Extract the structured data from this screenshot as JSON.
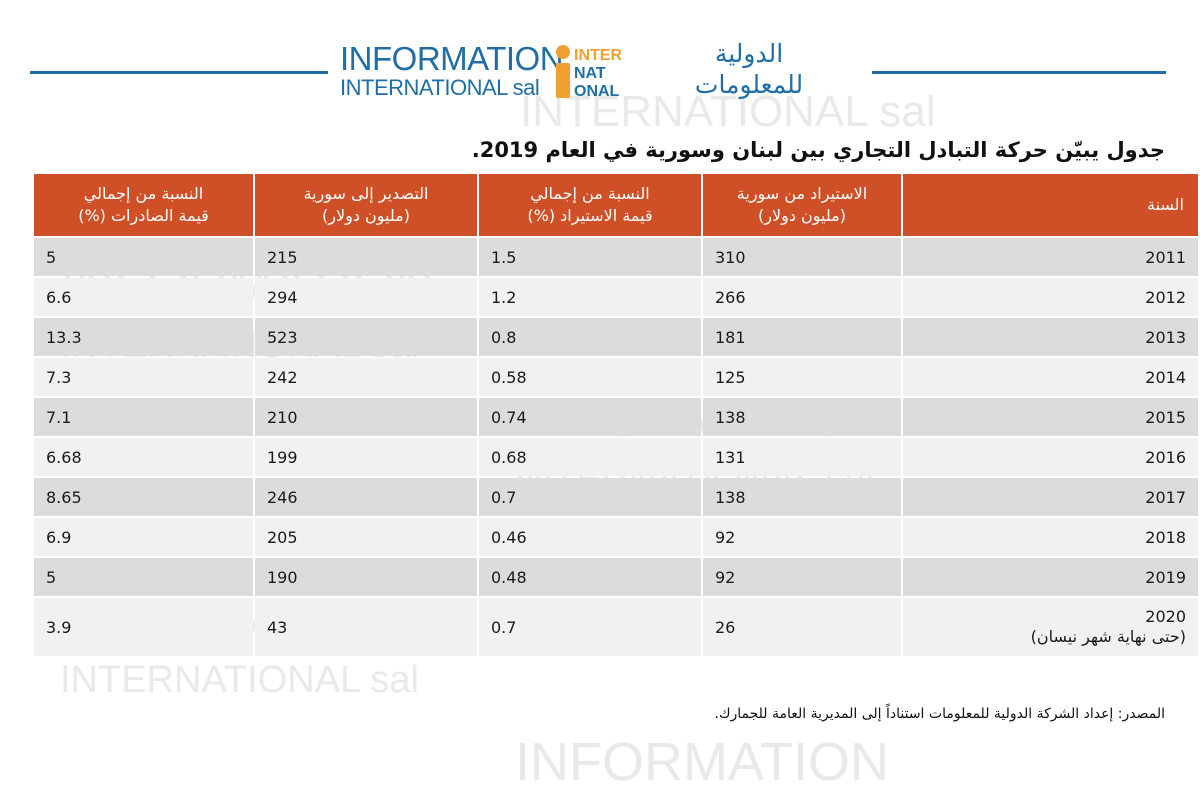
{
  "logo": {
    "en_line1": "INFORMATION",
    "en_line2": "INTERNATIONAL sal",
    "mark_letters": [
      "INTER",
      "NAT",
      "ONAL"
    ],
    "ar_line1": "الدولية",
    "ar_line2": "للمعلومات",
    "brand_color": "#1f6ea6",
    "mark_color": "#f0a030"
  },
  "title": "جدول يبيّن حركة التبادل التجاري بين لبنان وسورية في العام 2019.",
  "table": {
    "headers": {
      "year": "السنة",
      "imports": [
        "الاستيراد من سورية",
        "(مليون دولار)"
      ],
      "import_share": [
        "النسبة من إجمالي",
        "قيمة الاستيراد (%)"
      ],
      "exports": [
        "التصدير إلى سورية",
        "(مليون دولار)"
      ],
      "export_share": [
        "النسبة من إجمالي",
        "قيمة الصادرات (%)"
      ]
    },
    "header_color": "#cf4f26",
    "rows": [
      {
        "year": "2011",
        "imports": "310",
        "import_share": "1.5",
        "exports": "215",
        "export_share": "5"
      },
      {
        "year": "2012",
        "imports": "266",
        "import_share": "1.2",
        "exports": "294",
        "export_share": "6.6"
      },
      {
        "year": "2013",
        "imports": "181",
        "import_share": "0.8",
        "exports": "523",
        "export_share": "13.3"
      },
      {
        "year": "2014",
        "imports": "125",
        "import_share": "0.58",
        "exports": "242",
        "export_share": "7.3"
      },
      {
        "year": "2015",
        "imports": "138",
        "import_share": "0.74",
        "exports": "210",
        "export_share": "7.1"
      },
      {
        "year": "2016",
        "imports": "131",
        "import_share": "0.68",
        "exports": "199",
        "export_share": "6.68"
      },
      {
        "year": "2017",
        "imports": "138",
        "import_share": "0.7",
        "exports": "246",
        "export_share": "8.65"
      },
      {
        "year": "2018",
        "imports": "92",
        "import_share": "0.46",
        "exports": "205",
        "export_share": "6.9"
      },
      {
        "year": "2019",
        "imports": "92",
        "import_share": "0.48",
        "exports": "190",
        "export_share": "5"
      },
      {
        "year": "2020",
        "year_note": "(حتى نهاية شهر نيسان)",
        "imports": "26",
        "import_share": "0.7",
        "exports": "43",
        "export_share": "3.9"
      }
    ]
  },
  "source": "المصدر: إعداد الشركة الدولية للمعلومات استناداً إلى المديرية العامة للجمارك."
}
